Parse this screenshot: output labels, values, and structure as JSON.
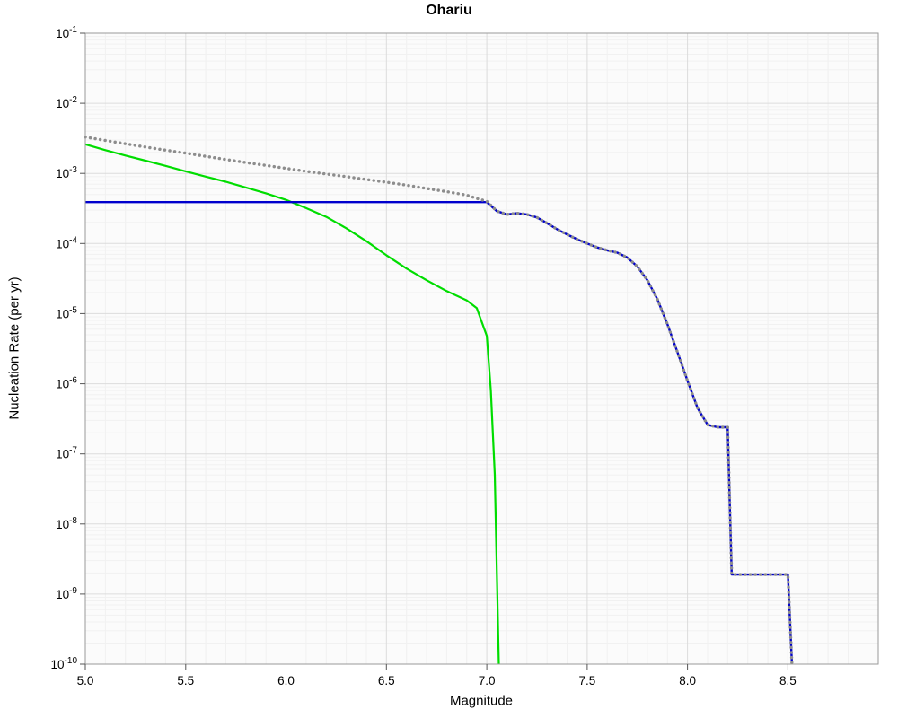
{
  "chart_data": {
    "type": "line",
    "title": "Ohariu",
    "xlabel": "Magnitude",
    "ylabel": "Nucleation Rate (per yr)",
    "xlim": [
      5.0,
      8.95
    ],
    "ylim": [
      1e-10,
      0.1
    ],
    "ylog": true,
    "grid": true,
    "legend": "none",
    "x_ticks": [
      5.0,
      5.5,
      6.0,
      6.5,
      7.0,
      7.5,
      8.0,
      8.5
    ],
    "y_tick_exponents": [
      -1,
      -2,
      -3,
      -4,
      -5,
      -6,
      -7,
      -8,
      -9,
      -10
    ],
    "frame": {
      "plot_bg": "#fbfbfb",
      "grid_major": "#dcdcdc",
      "grid_minor": "#f1f1f1",
      "border": "#999999",
      "tick_color": "#555555",
      "label_color": "#000000"
    },
    "series": [
      {
        "name": "green-curve",
        "color": "#00dd00",
        "style": "solid",
        "width": 2.2,
        "points": [
          [
            5.0,
            0.0026
          ],
          [
            5.1,
            0.00215
          ],
          [
            5.2,
            0.0018
          ],
          [
            5.3,
            0.00152
          ],
          [
            5.4,
            0.00128
          ],
          [
            5.5,
            0.00107
          ],
          [
            5.6,
            0.0009
          ],
          [
            5.7,
            0.00076
          ],
          [
            5.8,
            0.00063
          ],
          [
            5.9,
            0.00052
          ],
          [
            6.0,
            0.00042
          ],
          [
            6.1,
            0.00032
          ],
          [
            6.2,
            0.00024
          ],
          [
            6.3,
            0.000165
          ],
          [
            6.4,
            0.000108
          ],
          [
            6.5,
            6.8e-05
          ],
          [
            6.6,
            4.4e-05
          ],
          [
            6.7,
            3e-05
          ],
          [
            6.8,
            2.1e-05
          ],
          [
            6.9,
            1.55e-05
          ],
          [
            6.95,
            1.2e-05
          ],
          [
            7.0,
            4.8e-06
          ],
          [
            7.02,
            8e-07
          ],
          [
            7.04,
            5e-08
          ],
          [
            7.05,
            2e-09
          ],
          [
            7.06,
            1e-10
          ]
        ]
      },
      {
        "name": "blue-curve",
        "color": "#0000cd",
        "style": "solid",
        "width": 2.4,
        "points": [
          [
            5.0,
            0.00039
          ],
          [
            7.0,
            0.00039
          ],
          [
            7.05,
            0.00029
          ],
          [
            7.1,
            0.00026
          ],
          [
            7.15,
            0.00027
          ],
          [
            7.2,
            0.00026
          ],
          [
            7.25,
            0.000235
          ],
          [
            7.3,
            0.000195
          ],
          [
            7.35,
            0.00016
          ],
          [
            7.4,
            0.000135
          ],
          [
            7.45,
            0.000115
          ],
          [
            7.5,
            0.0001
          ],
          [
            7.55,
            8.8e-05
          ],
          [
            7.6,
            8e-05
          ],
          [
            7.65,
            7.4e-05
          ],
          [
            7.7,
            6.3e-05
          ],
          [
            7.75,
            4.7e-05
          ],
          [
            7.8,
            3e-05
          ],
          [
            7.85,
            1.6e-05
          ],
          [
            7.9,
            7e-06
          ],
          [
            7.95,
            2.8e-06
          ],
          [
            8.0,
            1.1e-06
          ],
          [
            8.05,
            4.5e-07
          ],
          [
            8.1,
            2.6e-07
          ],
          [
            8.15,
            2.4e-07
          ],
          [
            8.2,
            2.4e-07
          ],
          [
            8.22,
            1.9e-09
          ],
          [
            8.5,
            1.9e-09
          ],
          [
            8.52,
            1e-10
          ]
        ]
      },
      {
        "name": "gray-dotted-curve",
        "color": "#8d8d8d",
        "style": "dotted",
        "width": 3.4,
        "points": [
          [
            5.0,
            0.0033
          ],
          [
            5.1,
            0.00295
          ],
          [
            5.2,
            0.00265
          ],
          [
            5.3,
            0.00238
          ],
          [
            5.4,
            0.00215
          ],
          [
            5.5,
            0.00195
          ],
          [
            5.6,
            0.00175
          ],
          [
            5.7,
            0.00158
          ],
          [
            5.8,
            0.00143
          ],
          [
            5.9,
            0.0013
          ],
          [
            6.0,
            0.00118
          ],
          [
            6.1,
            0.00107
          ],
          [
            6.2,
            0.00098
          ],
          [
            6.3,
            0.0009
          ],
          [
            6.4,
            0.00082
          ],
          [
            6.5,
            0.00075
          ],
          [
            6.6,
            0.00068
          ],
          [
            6.7,
            0.00061
          ],
          [
            6.8,
            0.00055
          ],
          [
            6.9,
            0.00049
          ],
          [
            6.95,
            0.00044
          ],
          [
            7.0,
            0.0004
          ],
          [
            7.05,
            0.00029
          ],
          [
            7.1,
            0.00026
          ],
          [
            7.15,
            0.00027
          ],
          [
            7.2,
            0.00026
          ],
          [
            7.25,
            0.000235
          ],
          [
            7.3,
            0.000195
          ],
          [
            7.35,
            0.00016
          ],
          [
            7.4,
            0.000135
          ],
          [
            7.45,
            0.000115
          ],
          [
            7.5,
            0.0001
          ],
          [
            7.55,
            8.8e-05
          ],
          [
            7.6,
            8e-05
          ],
          [
            7.65,
            7.4e-05
          ],
          [
            7.7,
            6.3e-05
          ],
          [
            7.75,
            4.7e-05
          ],
          [
            7.8,
            3e-05
          ],
          [
            7.85,
            1.6e-05
          ],
          [
            7.9,
            7e-06
          ],
          [
            7.95,
            2.8e-06
          ],
          [
            8.0,
            1.1e-06
          ],
          [
            8.05,
            4.5e-07
          ],
          [
            8.1,
            2.6e-07
          ],
          [
            8.15,
            2.4e-07
          ],
          [
            8.2,
            2.4e-07
          ],
          [
            8.22,
            1.9e-09
          ],
          [
            8.5,
            1.9e-09
          ],
          [
            8.52,
            1e-10
          ]
        ]
      }
    ]
  }
}
